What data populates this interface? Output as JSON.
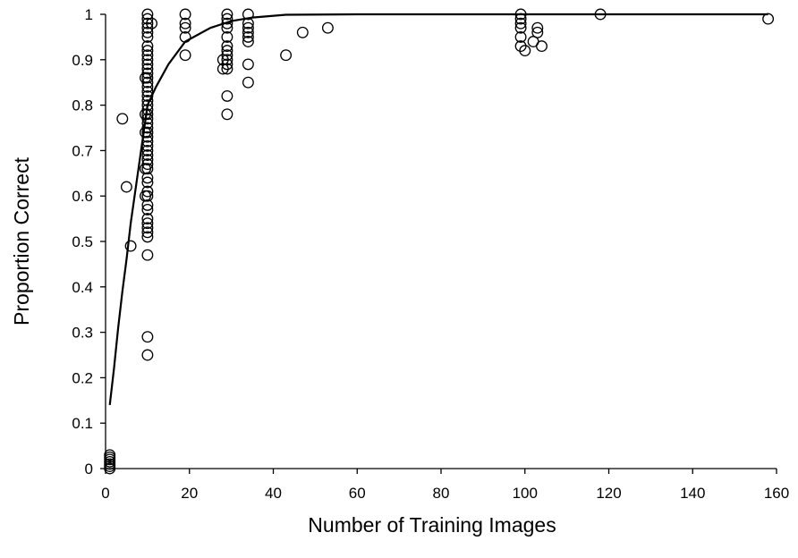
{
  "chart_data": {
    "type": "scatter",
    "title": "",
    "xlabel": "Number of Training Images",
    "ylabel": "Proportion Correct",
    "xlim": [
      0,
      160
    ],
    "ylim": [
      0,
      1
    ],
    "x_ticks": [
      0,
      20,
      40,
      60,
      80,
      100,
      120,
      140,
      160
    ],
    "y_ticks": [
      0,
      0.1,
      0.2,
      0.3,
      0.4,
      0.5,
      0.6,
      0.7,
      0.8,
      0.9,
      1
    ],
    "x_tick_labels": [
      "0",
      "20",
      "40",
      "60",
      "80",
      "100",
      "120",
      "140",
      "160"
    ],
    "y_tick_labels": [
      "0",
      "0.1",
      "0.2",
      "0.3",
      "0.4",
      "0.5",
      "0.6",
      "0.7",
      "0.8",
      "0.9",
      "1"
    ],
    "grid": false,
    "legend": "none",
    "series": [
      {
        "kind": "points",
        "marker": "open-circle",
        "points": [
          [
            1,
            0.0
          ],
          [
            1,
            0.005
          ],
          [
            1,
            0.01
          ],
          [
            1,
            0.015
          ],
          [
            1,
            0.02
          ],
          [
            1,
            0.025
          ],
          [
            1,
            0.03
          ],
          [
            4,
            0.77
          ],
          [
            5,
            0.62
          ],
          [
            6,
            0.49
          ],
          [
            9.5,
            0.86
          ],
          [
            9.5,
            0.78
          ],
          [
            9.5,
            0.74
          ],
          [
            9.5,
            0.66
          ],
          [
            9.5,
            0.6
          ],
          [
            10,
            1.0
          ],
          [
            10,
            0.99
          ],
          [
            10,
            0.98
          ],
          [
            10,
            0.97
          ],
          [
            10,
            0.96
          ],
          [
            10,
            0.95
          ],
          [
            10,
            0.93
          ],
          [
            10,
            0.92
          ],
          [
            10,
            0.91
          ],
          [
            10,
            0.9
          ],
          [
            10,
            0.89
          ],
          [
            10,
            0.88
          ],
          [
            10,
            0.87
          ],
          [
            10,
            0.86
          ],
          [
            10,
            0.85
          ],
          [
            10,
            0.84
          ],
          [
            10,
            0.83
          ],
          [
            10,
            0.82
          ],
          [
            10,
            0.81
          ],
          [
            10,
            0.8
          ],
          [
            10,
            0.79
          ],
          [
            10,
            0.78
          ],
          [
            10,
            0.77
          ],
          [
            10,
            0.76
          ],
          [
            10,
            0.75
          ],
          [
            10,
            0.74
          ],
          [
            10,
            0.73
          ],
          [
            10,
            0.72
          ],
          [
            10,
            0.71
          ],
          [
            10,
            0.7
          ],
          [
            10,
            0.69
          ],
          [
            10,
            0.68
          ],
          [
            10,
            0.67
          ],
          [
            10,
            0.66
          ],
          [
            10,
            0.64
          ],
          [
            10,
            0.63
          ],
          [
            10,
            0.61
          ],
          [
            10,
            0.6
          ],
          [
            10,
            0.58
          ],
          [
            10,
            0.57
          ],
          [
            10,
            0.55
          ],
          [
            10,
            0.54
          ],
          [
            10,
            0.53
          ],
          [
            10,
            0.52
          ],
          [
            10,
            0.51
          ],
          [
            10,
            0.47
          ],
          [
            10,
            0.29
          ],
          [
            10,
            0.25
          ],
          [
            11,
            0.98
          ],
          [
            19,
            1.0
          ],
          [
            19,
            0.98
          ],
          [
            19,
            0.97
          ],
          [
            19,
            0.95
          ],
          [
            19,
            0.91
          ],
          [
            28,
            0.9
          ],
          [
            28,
            0.88
          ],
          [
            29,
            1.0
          ],
          [
            29,
            0.99
          ],
          [
            29,
            0.98
          ],
          [
            29,
            0.97
          ],
          [
            29,
            0.95
          ],
          [
            29,
            0.93
          ],
          [
            29,
            0.92
          ],
          [
            29,
            0.91
          ],
          [
            29,
            0.9
          ],
          [
            29,
            0.89
          ],
          [
            29,
            0.88
          ],
          [
            29,
            0.82
          ],
          [
            29,
            0.78
          ],
          [
            34,
            1.0
          ],
          [
            34,
            0.98
          ],
          [
            34,
            0.97
          ],
          [
            34,
            0.96
          ],
          [
            34,
            0.95
          ],
          [
            34,
            0.94
          ],
          [
            34,
            0.89
          ],
          [
            34,
            0.85
          ],
          [
            43,
            0.91
          ],
          [
            47,
            0.96
          ],
          [
            53,
            0.97
          ],
          [
            99,
            1.0
          ],
          [
            99,
            0.99
          ],
          [
            99,
            0.98
          ],
          [
            99,
            0.97
          ],
          [
            99,
            0.95
          ],
          [
            99,
            0.93
          ],
          [
            100,
            0.92
          ],
          [
            102,
            0.94
          ],
          [
            103,
            0.97
          ],
          [
            103,
            0.96
          ],
          [
            104,
            0.93
          ],
          [
            118,
            1.0
          ],
          [
            158,
            0.99
          ]
        ]
      },
      {
        "kind": "fitted-curve",
        "x": [
          1,
          2,
          3,
          4,
          5,
          6,
          8,
          10,
          12,
          15,
          19,
          25,
          30,
          35,
          43,
          60,
          80,
          100,
          120,
          140,
          158
        ],
        "y": [
          0.14,
          0.22,
          0.31,
          0.39,
          0.46,
          0.54,
          0.67,
          0.8,
          0.84,
          0.89,
          0.94,
          0.97,
          0.985,
          0.993,
          0.999,
          1.0,
          1.0,
          1.0,
          1.0,
          1.0,
          1.0
        ]
      }
    ]
  }
}
